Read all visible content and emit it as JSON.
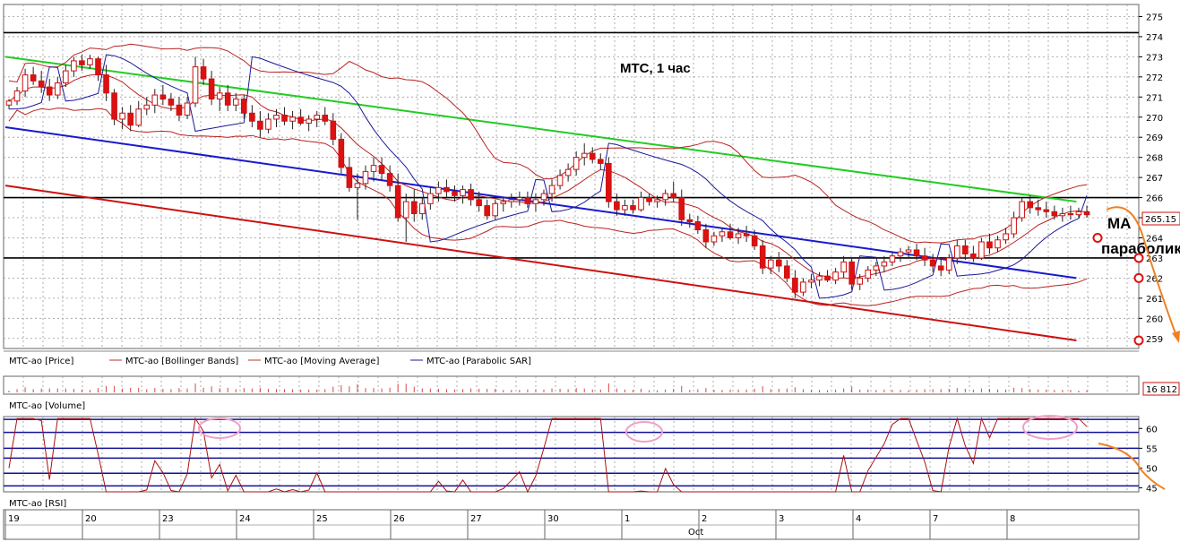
{
  "chart_data": [
    {
      "type": "candlestick",
      "title": "МТС,  1 час",
      "ylim": [
        258.5,
        275.6
      ],
      "yticks": [
        259,
        260,
        261,
        262,
        263,
        264,
        265,
        266,
        267,
        268,
        269,
        270,
        271,
        272,
        273,
        274,
        275
      ],
      "last_price_label": "265.15",
      "x_categories": [
        "19",
        "20",
        "23",
        "24",
        "25",
        "26",
        "27",
        "30",
        "1",
        "2",
        "3",
        "4",
        "7",
        "8"
      ],
      "x_sublabel": "Oct",
      "grid": true,
      "legend": [
        "MTC-ao [Price]",
        "MTC-ao [Bollinger Bands]",
        "MTC-ao [Moving Average]",
        "MTC-ao [Parabolic SAR]"
      ],
      "horizontal_levels": [
        274.2,
        266.0,
        263.0
      ],
      "channel_lines": [
        {
          "name": "upper",
          "color": "#22cc22",
          "from": [
            0,
            273.0
          ],
          "to": [
            13.9,
            265.8
          ]
        },
        {
          "name": "middle",
          "color": "#1a1acc",
          "from": [
            0,
            269.5
          ],
          "to": [
            13.9,
            262.0
          ]
        },
        {
          "name": "lower",
          "color": "#cc1111",
          "from": [
            0,
            266.6
          ],
          "to": [
            13.9,
            258.9
          ]
        }
      ],
      "annotations": [
        {
          "text": "МА",
          "y": 265.1
        },
        {
          "text": "параболик",
          "y": 263.9
        }
      ],
      "marked_levels": [
        263.0,
        262.0,
        258.9
      ],
      "candles": [
        [
          270.6,
          270.9,
          270.4,
          270.8
        ],
        [
          270.8,
          271.5,
          270.6,
          271.3
        ],
        [
          271.3,
          272.4,
          271.0,
          272.1
        ],
        [
          272.1,
          272.5,
          271.6,
          271.8
        ],
        [
          271.8,
          272.3,
          271.2,
          271.5
        ],
        [
          271.5,
          271.9,
          270.8,
          271.1
        ],
        [
          271.1,
          272.0,
          270.9,
          271.7
        ],
        [
          271.7,
          272.6,
          271.5,
          272.3
        ],
        [
          272.3,
          273.0,
          272.0,
          272.8
        ],
        [
          272.8,
          273.1,
          272.3,
          272.6
        ],
        [
          272.6,
          273.1,
          272.4,
          272.9
        ],
        [
          272.9,
          273.0,
          271.8,
          272.1
        ],
        [
          272.1,
          272.6,
          270.8,
          271.2
        ],
        [
          271.2,
          271.4,
          269.6,
          269.9
        ],
        [
          269.9,
          270.5,
          269.4,
          270.2
        ],
        [
          270.2,
          270.6,
          269.3,
          269.6
        ],
        [
          269.6,
          270.8,
          269.5,
          270.4
        ],
        [
          270.4,
          271.0,
          270.1,
          270.6
        ],
        [
          270.6,
          271.4,
          270.2,
          271.1
        ],
        [
          271.1,
          271.6,
          270.6,
          270.9
        ],
        [
          270.9,
          271.2,
          270.3,
          270.6
        ],
        [
          270.6,
          271.0,
          269.8,
          270.1
        ],
        [
          270.1,
          271.0,
          269.9,
          270.7
        ],
        [
          270.7,
          273.0,
          270.5,
          272.5
        ],
        [
          272.5,
          272.9,
          271.6,
          271.9
        ],
        [
          271.9,
          272.3,
          270.6,
          270.9
        ],
        [
          270.9,
          271.5,
          270.3,
          271.2
        ],
        [
          271.2,
          271.6,
          270.3,
          270.6
        ],
        [
          270.6,
          271.2,
          270.3,
          270.9
        ],
        [
          270.9,
          271.1,
          269.9,
          270.2
        ],
        [
          270.2,
          270.6,
          269.5,
          269.8
        ],
        [
          269.8,
          270.3,
          269.0,
          269.4
        ],
        [
          269.4,
          270.2,
          269.2,
          269.9
        ],
        [
          269.9,
          270.4,
          269.5,
          270.1
        ],
        [
          270.1,
          270.5,
          269.6,
          269.8
        ],
        [
          269.8,
          270.3,
          269.4,
          270.0
        ],
        [
          270.0,
          270.4,
          269.6,
          269.7
        ],
        [
          269.7,
          270.1,
          269.3,
          269.9
        ],
        [
          269.9,
          270.3,
          269.5,
          270.1
        ],
        [
          270.1,
          270.5,
          269.6,
          269.8
        ],
        [
          269.8,
          270.2,
          268.6,
          268.9
        ],
        [
          268.9,
          269.2,
          267.2,
          267.5
        ],
        [
          267.5,
          268.0,
          266.3,
          266.5
        ],
        [
          266.5,
          267.2,
          264.9,
          266.7
        ],
        [
          266.7,
          267.6,
          266.4,
          267.3
        ],
        [
          267.3,
          268.0,
          266.8,
          267.6
        ],
        [
          267.6,
          268.0,
          266.9,
          267.2
        ],
        [
          267.2,
          267.6,
          266.3,
          266.6
        ],
        [
          266.6,
          267.2,
          264.8,
          265.0
        ],
        [
          265.0,
          266.2,
          263.8,
          265.8
        ],
        [
          265.8,
          266.4,
          264.8,
          265.2
        ],
        [
          265.2,
          266.0,
          264.9,
          265.7
        ],
        [
          265.7,
          266.5,
          265.4,
          266.2
        ],
        [
          266.2,
          266.8,
          265.8,
          266.5
        ],
        [
          266.5,
          266.9,
          266.0,
          266.3
        ],
        [
          266.3,
          266.6,
          265.8,
          266.1
        ],
        [
          266.1,
          266.6,
          265.7,
          266.4
        ],
        [
          266.4,
          266.7,
          265.6,
          265.9
        ],
        [
          265.9,
          266.3,
          265.3,
          265.6
        ],
        [
          265.6,
          265.9,
          264.9,
          265.1
        ],
        [
          265.1,
          265.9,
          264.9,
          265.7
        ],
        [
          265.7,
          266.0,
          265.3,
          265.8
        ],
        [
          265.8,
          266.2,
          265.5,
          265.9
        ],
        [
          265.9,
          266.3,
          265.6,
          266.0
        ],
        [
          266.0,
          266.3,
          265.5,
          265.7
        ],
        [
          265.7,
          266.2,
          265.3,
          265.9
        ],
        [
          265.9,
          266.4,
          265.6,
          266.2
        ],
        [
          266.2,
          266.9,
          265.8,
          266.6
        ],
        [
          266.6,
          267.4,
          266.4,
          267.1
        ],
        [
          267.1,
          267.7,
          266.8,
          267.4
        ],
        [
          267.4,
          268.3,
          267.1,
          268.0
        ],
        [
          268.0,
          268.7,
          267.6,
          268.2
        ],
        [
          268.2,
          268.5,
          267.7,
          267.9
        ],
        [
          267.9,
          268.2,
          267.4,
          267.7
        ],
        [
          267.7,
          268.0,
          265.5,
          265.8
        ],
        [
          265.8,
          266.2,
          265.1,
          265.4
        ],
        [
          265.4,
          265.9,
          265.1,
          265.6
        ],
        [
          265.6,
          265.9,
          265.2,
          265.4
        ],
        [
          265.4,
          266.3,
          265.3,
          266.0
        ],
        [
          266.0,
          266.2,
          265.6,
          265.8
        ],
        [
          265.8,
          266.1,
          265.5,
          265.9
        ],
        [
          265.9,
          266.4,
          265.6,
          266.2
        ],
        [
          266.2,
          266.8,
          265.8,
          266.0
        ],
        [
          266.0,
          266.4,
          264.6,
          264.9
        ],
        [
          264.9,
          265.2,
          264.5,
          264.8
        ],
        [
          264.8,
          265.1,
          264.2,
          264.4
        ],
        [
          264.4,
          264.7,
          263.5,
          263.8
        ],
        [
          263.8,
          264.3,
          263.6,
          264.1
        ],
        [
          264.1,
          264.5,
          263.8,
          264.3
        ],
        [
          264.3,
          264.7,
          263.9,
          264.0
        ],
        [
          264.0,
          264.5,
          263.7,
          264.2
        ],
        [
          264.2,
          264.6,
          263.8,
          264.1
        ],
        [
          264.1,
          264.4,
          263.4,
          263.6
        ],
        [
          263.6,
          263.9,
          262.2,
          262.5
        ],
        [
          262.5,
          263.1,
          262.2,
          262.9
        ],
        [
          262.9,
          263.3,
          262.3,
          262.6
        ],
        [
          262.6,
          262.9,
          261.8,
          262.0
        ],
        [
          262.0,
          262.4,
          261.0,
          261.3
        ],
        [
          261.3,
          262.0,
          261.1,
          261.8
        ],
        [
          261.8,
          262.2,
          261.5,
          261.9
        ],
        [
          261.9,
          262.3,
          261.6,
          262.1
        ],
        [
          262.1,
          262.4,
          261.8,
          261.9
        ],
        [
          261.9,
          262.5,
          261.7,
          262.3
        ],
        [
          262.3,
          263.1,
          262.0,
          262.8
        ],
        [
          262.8,
          263.0,
          261.4,
          261.7
        ],
        [
          261.7,
          262.2,
          261.4,
          262.0
        ],
        [
          262.0,
          262.6,
          261.8,
          262.4
        ],
        [
          262.4,
          262.8,
          262.1,
          262.6
        ],
        [
          262.6,
          263.1,
          262.3,
          262.8
        ],
        [
          262.8,
          263.3,
          262.6,
          263.1
        ],
        [
          263.1,
          263.5,
          262.8,
          263.3
        ],
        [
          263.3,
          263.6,
          263.0,
          263.4
        ],
        [
          263.4,
          263.7,
          262.9,
          263.1
        ],
        [
          263.1,
          263.5,
          262.6,
          262.9
        ],
        [
          262.9,
          263.2,
          262.3,
          262.6
        ],
        [
          262.6,
          263.0,
          262.1,
          262.4
        ],
        [
          262.4,
          263.2,
          262.2,
          263.0
        ],
        [
          263.0,
          263.9,
          262.7,
          263.6
        ],
        [
          263.6,
          263.9,
          262.9,
          263.2
        ],
        [
          263.2,
          263.6,
          262.8,
          263.0
        ],
        [
          263.0,
          264.0,
          262.9,
          263.8
        ],
        [
          263.8,
          264.2,
          263.2,
          263.5
        ],
        [
          263.5,
          264.1,
          263.3,
          263.9
        ],
        [
          263.9,
          264.5,
          263.7,
          264.2
        ],
        [
          264.2,
          265.3,
          264.0,
          265.0
        ],
        [
          265.0,
          266.0,
          264.8,
          265.8
        ],
        [
          265.8,
          266.1,
          265.2,
          265.5
        ],
        [
          265.5,
          265.9,
          265.1,
          265.4
        ],
        [
          265.4,
          265.8,
          265.0,
          265.3
        ],
        [
          265.3,
          265.6,
          264.9,
          265.1
        ],
        [
          265.1,
          265.5,
          264.8,
          265.2
        ],
        [
          265.2,
          265.6,
          264.9,
          265.15
        ],
        [
          265.15,
          265.5,
          265.0,
          265.3
        ],
        [
          265.3,
          265.6,
          265.0,
          265.15
        ]
      ]
    },
    {
      "type": "bar",
      "title": "MTC-ao [Volume]",
      "last_value_label": "16 812"
    },
    {
      "type": "line",
      "title": "MTC-ao [RSI]",
      "ylim": [
        44,
        63
      ],
      "yticks": [
        45,
        50,
        55,
        60
      ],
      "levels": [
        62.3,
        59.0,
        55.0,
        52.5,
        48.7,
        45.5
      ]
    }
  ]
}
